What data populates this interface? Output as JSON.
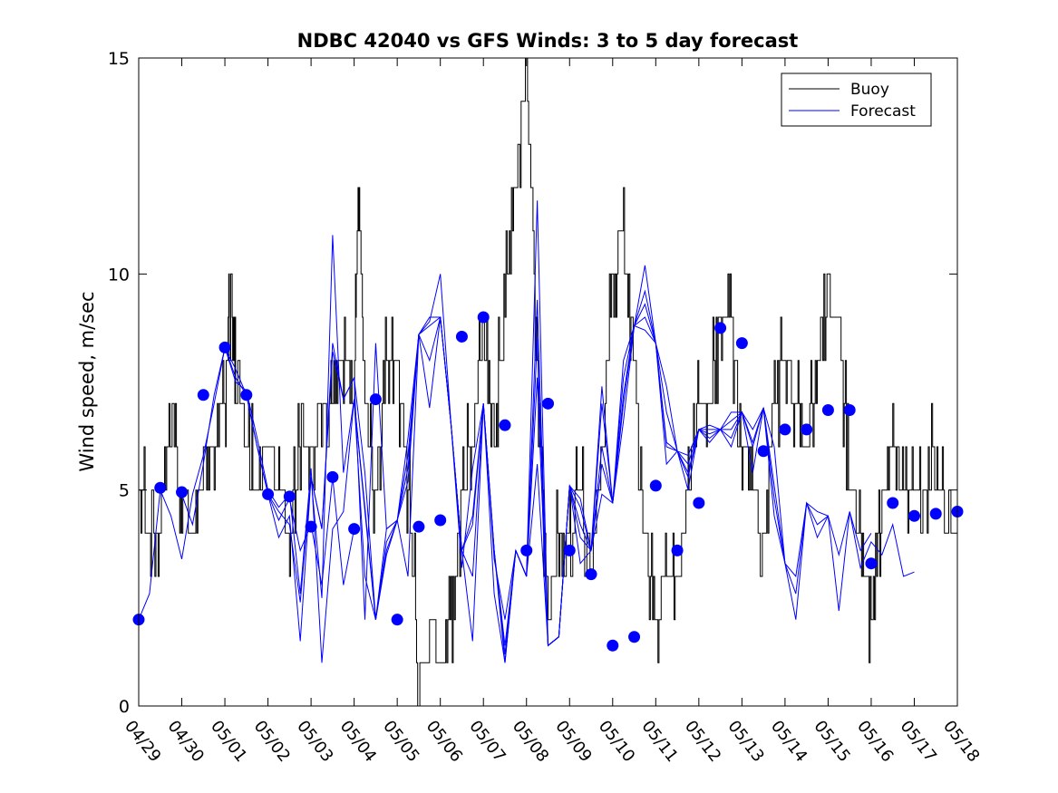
{
  "chart_data": {
    "type": "line",
    "title": "NDBC 42040 vs GFS Winds: 3 to 5 day forecast",
    "xlabel": "",
    "ylabel": "Wind speed, m/sec",
    "xlim": [
      "04/29",
      "05/18"
    ],
    "ylim": [
      0,
      15
    ],
    "yticks": [
      0,
      5,
      10,
      15
    ],
    "xtick_labels": [
      "04/29",
      "04/30",
      "05/01",
      "05/02",
      "05/03",
      "05/04",
      "05/05",
      "05/06",
      "05/07",
      "05/08",
      "05/09",
      "05/10",
      "05/11",
      "05/12",
      "05/13",
      "05/14",
      "05/15",
      "05/16",
      "05/17",
      "05/18"
    ],
    "grid": false,
    "legend_position": "top-right",
    "colors": {
      "buoy": "#000000",
      "forecast": "#0000ff"
    },
    "buoy": {
      "name": "Buoy",
      "x": [
        0.0,
        0.25,
        0.5,
        0.75,
        1.0,
        1.25,
        1.5,
        1.75,
        2.0,
        2.15,
        2.25,
        2.5,
        2.75,
        3.0,
        3.25,
        3.5,
        3.75,
        4.0,
        4.3,
        4.5,
        4.75,
        5.0,
        5.1,
        5.25,
        5.5,
        5.75,
        6.0,
        6.25,
        6.5,
        6.75,
        7.0,
        7.25,
        7.5,
        7.75,
        8.0,
        8.25,
        8.5,
        8.75,
        9.0,
        9.25,
        9.5,
        9.75,
        10.0,
        10.25,
        10.5,
        10.75,
        11.0,
        11.25,
        11.5,
        11.75,
        12.0,
        12.25,
        12.5,
        12.75,
        13.0,
        13.25,
        13.5,
        13.75,
        14.0,
        14.25,
        14.5,
        14.75,
        15.0,
        15.25,
        15.5,
        15.75,
        16.0,
        16.25,
        16.5,
        16.75,
        17.0,
        17.25,
        17.5,
        17.75,
        18.0,
        18.25,
        18.5,
        18.75,
        19.0
      ],
      "values": [
        5,
        4,
        4.5,
        6,
        5,
        4,
        5.5,
        6,
        7,
        10,
        8,
        6,
        5,
        6,
        5,
        4,
        6,
        6,
        7,
        7,
        8,
        7,
        12,
        7,
        5,
        8,
        8,
        5,
        1,
        2,
        1,
        2,
        5,
        6,
        9,
        6,
        10,
        12,
        15,
        8,
        2,
        4,
        4,
        5,
        3,
        6,
        10,
        11,
        8,
        4,
        2,
        3,
        3,
        5,
        7,
        7,
        9,
        9,
        6,
        5,
        4,
        7,
        8,
        7,
        6,
        8,
        9,
        9,
        5,
        4,
        2,
        5,
        6,
        5,
        5,
        5,
        6,
        4,
        4
      ]
    },
    "forecast": {
      "name": "Forecast",
      "series": [
        {
          "x": [
            0.0,
            0.25,
            0.5,
            0.75,
            1.0,
            1.25,
            1.5,
            1.75,
            2.0,
            2.25,
            2.5,
            2.75,
            3.0,
            3.25,
            3.5,
            3.75,
            4.0,
            4.25,
            4.5,
            4.75,
            5.0
          ],
          "values": [
            2.0,
            2.6,
            5.0,
            4.4,
            3.4,
            4.9,
            5.8,
            7.0,
            8.3,
            7.6,
            7.2,
            6.0,
            4.9,
            4.3,
            4.8,
            3.6,
            4.2,
            2.8,
            5.3,
            2.8,
            4.1
          ]
        },
        {
          "x": [
            1.0,
            1.25,
            1.5,
            1.75,
            2.0,
            2.25,
            2.5,
            2.75,
            3.0,
            3.25,
            3.5,
            3.75,
            4.0,
            4.25,
            4.5,
            4.75,
            5.0,
            5.25,
            5.5,
            5.75,
            6.0
          ],
          "values": [
            4.9,
            4.2,
            5.6,
            7.2,
            8.3,
            7.5,
            7.3,
            6.2,
            5.0,
            4.6,
            4.9,
            2.6,
            5.5,
            1.0,
            4.1,
            4.5,
            7.1,
            3.0,
            2.0,
            3.8,
            4.3
          ]
        },
        {
          "x": [
            2.0,
            2.25,
            2.5,
            2.75,
            3.0,
            3.25,
            3.5,
            3.75,
            4.0,
            4.25,
            4.5,
            4.75,
            5.0,
            5.25,
            5.5,
            5.75,
            6.0,
            6.25,
            6.5,
            6.75,
            7.0
          ],
          "values": [
            8.3,
            7.8,
            7.2,
            6.0,
            4.9,
            3.9,
            4.4,
            1.5,
            5.3,
            2.5,
            10.9,
            5.4,
            7.1,
            4.6,
            2.0,
            3.5,
            4.3,
            5.5,
            8.6,
            6.9,
            9.0
          ]
        },
        {
          "x": [
            3.0,
            3.25,
            3.5,
            3.75,
            4.0,
            4.25,
            4.5,
            4.75,
            5.0,
            5.25,
            5.5,
            5.75,
            6.0,
            6.25,
            6.5,
            6.75,
            7.0,
            7.25,
            7.5,
            7.75,
            8.0
          ],
          "values": [
            4.9,
            4.5,
            4.2,
            2.4,
            5.3,
            4.1,
            8.4,
            7.1,
            7.6,
            2.0,
            8.4,
            4.1,
            4.3,
            3.0,
            8.6,
            8.0,
            9.0,
            6.5,
            3.2,
            5.5,
            7.0
          ]
        },
        {
          "x": [
            4.0,
            4.25,
            4.5,
            4.75,
            5.0,
            5.25,
            5.5,
            5.75,
            6.0,
            6.25,
            6.5,
            6.75,
            7.0,
            7.25,
            7.5,
            7.75,
            8.0,
            8.25,
            8.5,
            8.75,
            9.0
          ],
          "values": [
            5.3,
            4.1,
            8.2,
            7.1,
            7.6,
            5.4,
            2.0,
            4.1,
            4.3,
            5.8,
            8.6,
            9.0,
            9.0,
            6.5,
            3.6,
            1.5,
            7.0,
            3.6,
            1.0,
            3.6,
            3.0
          ]
        },
        {
          "x": [
            5.0,
            5.25,
            5.5,
            5.75,
            6.0,
            6.25,
            6.5,
            6.75,
            7.0,
            7.25,
            7.5,
            7.75,
            8.0,
            8.25,
            8.5,
            8.75,
            9.0,
            9.25,
            9.5,
            9.75,
            10.0
          ],
          "values": [
            7.1,
            4.5,
            2.0,
            3.6,
            4.3,
            5.2,
            8.6,
            8.9,
            10.0,
            6.5,
            3.6,
            4.4,
            7.0,
            2.6,
            1.0,
            3.6,
            3.0,
            11.7,
            1.4,
            1.6,
            5.1
          ]
        },
        {
          "x": [
            6.0,
            6.25,
            6.5,
            6.75,
            7.0,
            7.25,
            7.5,
            7.75,
            8.0,
            8.25,
            8.5,
            8.75,
            9.0,
            9.25,
            9.5,
            9.75,
            10.0,
            10.25,
            10.5,
            10.75,
            11.0
          ],
          "values": [
            4.3,
            6.2,
            8.6,
            8.8,
            9.0,
            6.5,
            3.6,
            4.2,
            7.0,
            3.4,
            2.0,
            3.6,
            3.0,
            8.5,
            1.4,
            1.6,
            5.1,
            3.3,
            3.6,
            5.6,
            4.7
          ]
        },
        {
          "x": [
            7.0,
            7.25,
            7.5,
            7.75,
            8.0,
            8.25,
            8.5,
            8.75,
            9.0,
            9.25,
            9.5,
            9.75,
            10.0,
            10.25,
            10.5,
            10.75,
            11.0,
            11.25,
            11.5,
            11.75,
            12.0
          ],
          "values": [
            9.0,
            6.5,
            3.6,
            3.0,
            7.0,
            3.6,
            1.4,
            3.6,
            3.0,
            9.4,
            1.4,
            1.6,
            5.1,
            3.9,
            3.6,
            4.9,
            4.7,
            7.0,
            8.8,
            8.7,
            8.4
          ]
        },
        {
          "x": [
            8.0,
            8.25,
            8.5,
            8.75,
            9.0,
            9.25,
            9.5,
            9.75,
            10.0,
            10.25,
            10.5,
            10.75,
            11.0,
            11.25,
            11.5,
            11.75,
            12.0,
            12.25,
            12.5,
            12.75,
            13.0
          ],
          "values": [
            7.0,
            3.6,
            1.2,
            3.6,
            3.0,
            7.6,
            1.4,
            1.6,
            5.1,
            4.2,
            3.6,
            6.0,
            4.7,
            7.6,
            8.8,
            9.6,
            8.4,
            7.4,
            5.9,
            5.0,
            6.4
          ]
        },
        {
          "x": [
            9.0,
            9.25,
            9.5,
            9.75,
            10.0,
            10.25,
            10.5,
            10.75,
            11.0,
            11.25,
            11.5,
            11.75,
            12.0,
            12.25,
            12.5,
            12.75,
            13.0,
            13.25,
            13.5,
            13.75,
            14.0
          ],
          "values": [
            3.0,
            5.6,
            1.4,
            1.6,
            5.1,
            4.6,
            3.6,
            7.4,
            4.7,
            8.0,
            8.8,
            10.2,
            8.4,
            6.8,
            5.9,
            5.3,
            6.4,
            6.5,
            6.4,
            6.8,
            6.8
          ]
        },
        {
          "x": [
            10.0,
            10.25,
            10.5,
            10.75,
            11.0,
            11.25,
            11.5,
            11.75,
            12.0,
            12.25,
            12.5,
            12.75,
            13.0,
            13.25,
            13.5,
            13.75,
            14.0,
            14.25,
            14.5,
            14.75,
            15.0
          ],
          "values": [
            5.1,
            4.8,
            3.6,
            7.0,
            4.7,
            7.2,
            8.8,
            9.3,
            8.4,
            6.1,
            5.9,
            5.4,
            6.4,
            6.1,
            6.4,
            6.6,
            6.8,
            5.4,
            6.9,
            4.4,
            3.3
          ]
        },
        {
          "x": [
            11.0,
            11.25,
            11.5,
            11.75,
            12.0,
            12.25,
            12.5,
            12.75,
            13.0,
            13.25,
            13.5,
            13.75,
            14.0,
            14.25,
            14.5,
            14.75,
            15.0,
            15.25,
            15.5,
            15.75,
            16.0
          ],
          "values": [
            4.7,
            6.6,
            8.8,
            9.0,
            8.4,
            5.6,
            5.9,
            5.6,
            6.4,
            6.2,
            6.4,
            6.2,
            6.8,
            6.0,
            6.9,
            4.8,
            3.3,
            2.6,
            4.7,
            3.9,
            4.4
          ]
        },
        {
          "x": [
            12.0,
            12.25,
            12.5,
            12.75,
            13.0,
            13.25,
            13.5,
            13.75,
            14.0,
            14.25,
            14.5,
            14.75,
            15.0,
            15.25,
            15.5,
            15.75,
            16.0,
            16.25,
            16.5,
            16.75,
            17.0
          ],
          "values": [
            8.4,
            6.0,
            5.9,
            5.8,
            6.4,
            6.3,
            6.4,
            6.4,
            6.8,
            6.1,
            6.9,
            5.1,
            3.3,
            2.0,
            4.7,
            4.2,
            4.4,
            2.2,
            4.5,
            3.6,
            4.0
          ]
        },
        {
          "x": [
            13.0,
            13.25,
            13.5,
            13.75,
            14.0,
            14.25,
            14.5,
            14.75,
            15.0,
            15.25,
            15.5,
            15.75,
            16.0,
            16.25,
            16.5,
            16.75,
            17.0,
            17.25,
            17.5,
            17.75,
            18.0
          ],
          "values": [
            6.4,
            6.4,
            6.4,
            6.0,
            6.8,
            6.4,
            6.9,
            6.0,
            3.3,
            3.0,
            4.7,
            4.5,
            4.4,
            3.5,
            4.5,
            3.2,
            3.8,
            3.5,
            4.2,
            3.0,
            3.1
          ]
        }
      ],
      "markers": {
        "x": [
          0.0,
          0.5,
          1.0,
          1.5,
          2.0,
          2.5,
          3.0,
          3.5,
          4.0,
          4.5,
          5.0,
          5.5,
          6.0,
          6.5,
          7.0,
          7.5,
          8.0,
          8.5,
          9.0,
          9.5,
          10.0,
          10.5,
          11.0,
          11.5,
          12.0,
          12.5,
          13.0,
          13.5,
          14.0,
          14.5,
          15.0,
          15.5,
          16.0,
          16.5,
          17.0,
          17.5,
          18.0,
          18.5,
          19.0
        ],
        "values": [
          2.0,
          5.05,
          4.95,
          7.2,
          8.3,
          7.2,
          4.9,
          4.85,
          4.15,
          5.3,
          4.1,
          7.1,
          2.0,
          4.15,
          4.3,
          8.55,
          9.0,
          6.5,
          3.6,
          7.0,
          3.6,
          3.05,
          1.4,
          1.6,
          5.1,
          3.6,
          4.7,
          8.75,
          8.4,
          5.9,
          6.4,
          6.4,
          6.85,
          6.85,
          3.3,
          4.7,
          4.4,
          4.45,
          4.5
        ]
      }
    }
  }
}
